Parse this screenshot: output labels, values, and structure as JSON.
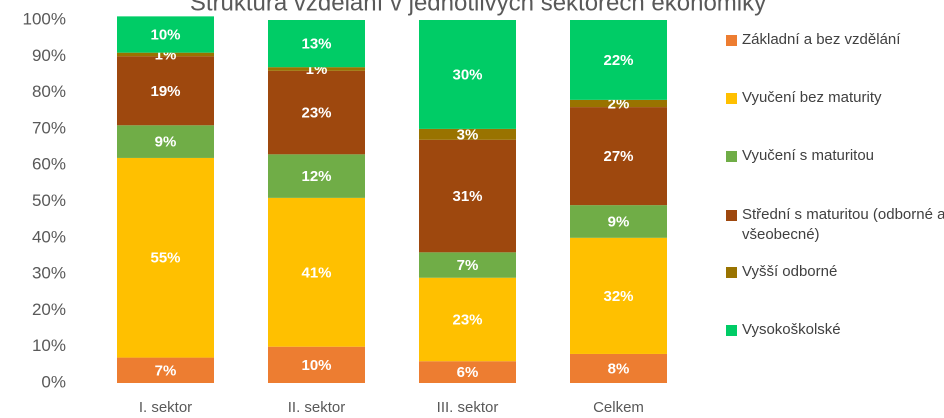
{
  "chart_data": {
    "type": "stacked_bar",
    "title": "Struktura vzdělání v jednotlivých sektorech ekonomiky",
    "categories": [
      "I. sektor",
      "II. sektor",
      "III. sektor",
      "Celkem"
    ],
    "series": [
      {
        "name": "Základní a bez vzdělání",
        "color": "#ED7D31",
        "values": [
          7,
          10,
          6,
          8
        ],
        "value_labels": [
          "7%",
          "10%",
          "6%",
          "8%"
        ]
      },
      {
        "name": "Vyučení bez maturity",
        "color": "#FFC000",
        "values": [
          55,
          41,
          23,
          32
        ],
        "value_labels": [
          "55%",
          "41%",
          "23%",
          "32%"
        ]
      },
      {
        "name": "Vyučení s maturitou",
        "color": "#70AD47",
        "values": [
          9,
          12,
          7,
          9
        ],
        "value_labels": [
          "9%",
          "12%",
          "7%",
          "9%"
        ]
      },
      {
        "name": "Střední s maturitou (odborné a všeobecné)",
        "color": "#9E480E",
        "values": [
          19,
          23,
          31,
          27
        ],
        "value_labels": [
          "19%",
          "23%",
          "31%",
          "27%"
        ]
      },
      {
        "name": "Vyšší odborné",
        "color": "#997300",
        "values": [
          1,
          1,
          3,
          2
        ],
        "value_labels": [
          "1%",
          "1%",
          "3%",
          "2%"
        ]
      },
      {
        "name": "Vysokoškolské",
        "color": "#00CC66",
        "values": [
          10,
          13,
          30,
          22
        ],
        "value_labels": [
          "10%",
          "13%",
          "30%",
          "22%"
        ]
      }
    ],
    "ylim": [
      0,
      100
    ],
    "yticks": [
      {
        "value": 0,
        "label": "0%"
      },
      {
        "value": 10,
        "label": "10%"
      },
      {
        "value": 20,
        "label": "20%"
      },
      {
        "value": 30,
        "label": "30%"
      },
      {
        "value": 40,
        "label": "40%"
      },
      {
        "value": 50,
        "label": "50%"
      },
      {
        "value": 60,
        "label": "60%"
      },
      {
        "value": 70,
        "label": "70%"
      },
      {
        "value": 80,
        "label": "80%"
      },
      {
        "value": 90,
        "label": "90%"
      },
      {
        "value": 100,
        "label": "100%"
      }
    ],
    "legend": "right"
  }
}
